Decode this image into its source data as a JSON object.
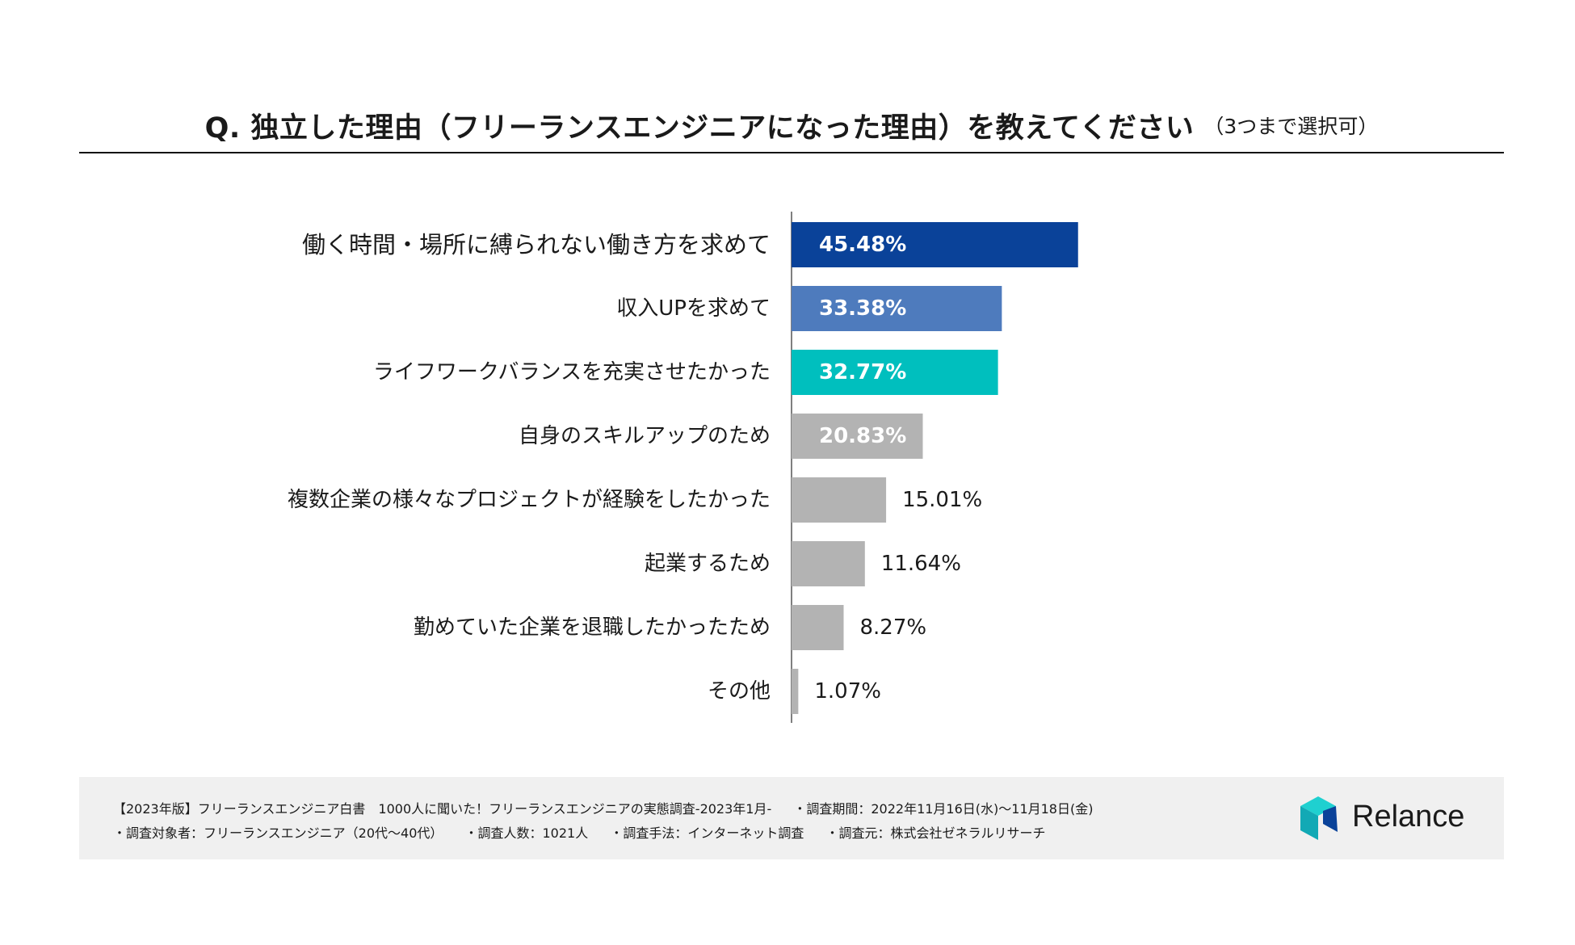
{
  "chart_data": {
    "type": "bar",
    "orientation": "horizontal",
    "title": "Q. 独立した理由（フリーランスエンジニアになった理由）を教えてください",
    "subtitle": "（3つまで選択可）",
    "categories": [
      "働く時間・場所に縛られない働き方を求めて",
      "収入UPを求めて",
      "ライフワークバランスを充実させたかった",
      "自身のスキルアップのため",
      "複数企業の様々なプロジェクトが経験をしたかった",
      "起業するため",
      "勤めていた企業を退職したかったため",
      "その他"
    ],
    "values": [
      45.48,
      33.38,
      32.77,
      20.83,
      15.01,
      11.64,
      8.27,
      1.07
    ],
    "value_labels": [
      "45.48%",
      "33.38%",
      "32.77%",
      "20.83%",
      "15.01%",
      "11.64%",
      "8.27%",
      "1.07%"
    ],
    "colors": [
      "#0a4299",
      "#4e7bbd",
      "#00bfbe",
      "#b3b3b3",
      "#b3b3b3",
      "#b3b3b3",
      "#b3b3b3",
      "#b3b3b3"
    ],
    "label_inside": [
      true,
      true,
      true,
      true,
      false,
      false,
      false,
      false
    ],
    "xlim": [
      0,
      100
    ],
    "unit": "%"
  },
  "footer": {
    "line1": [
      "【2023年版】フリーランスエンジニア白書　1000人に聞いた！フリーランスエンジニアの実態調査-2023年1月-",
      "・調査期間：2022年11月16日(水)〜11月18日(金)"
    ],
    "line2": [
      "・調査対象者：フリーランスエンジニア（20代〜40代）",
      "・調査人数：1021人",
      "・調査手法：インターネット調査",
      "・調査元：株式会社ゼネラルリサーチ"
    ]
  },
  "logo": {
    "text": "Relance",
    "colors": {
      "light": "#1fd0d0",
      "mid": "#12a9b5",
      "dark": "#0a4299"
    }
  }
}
